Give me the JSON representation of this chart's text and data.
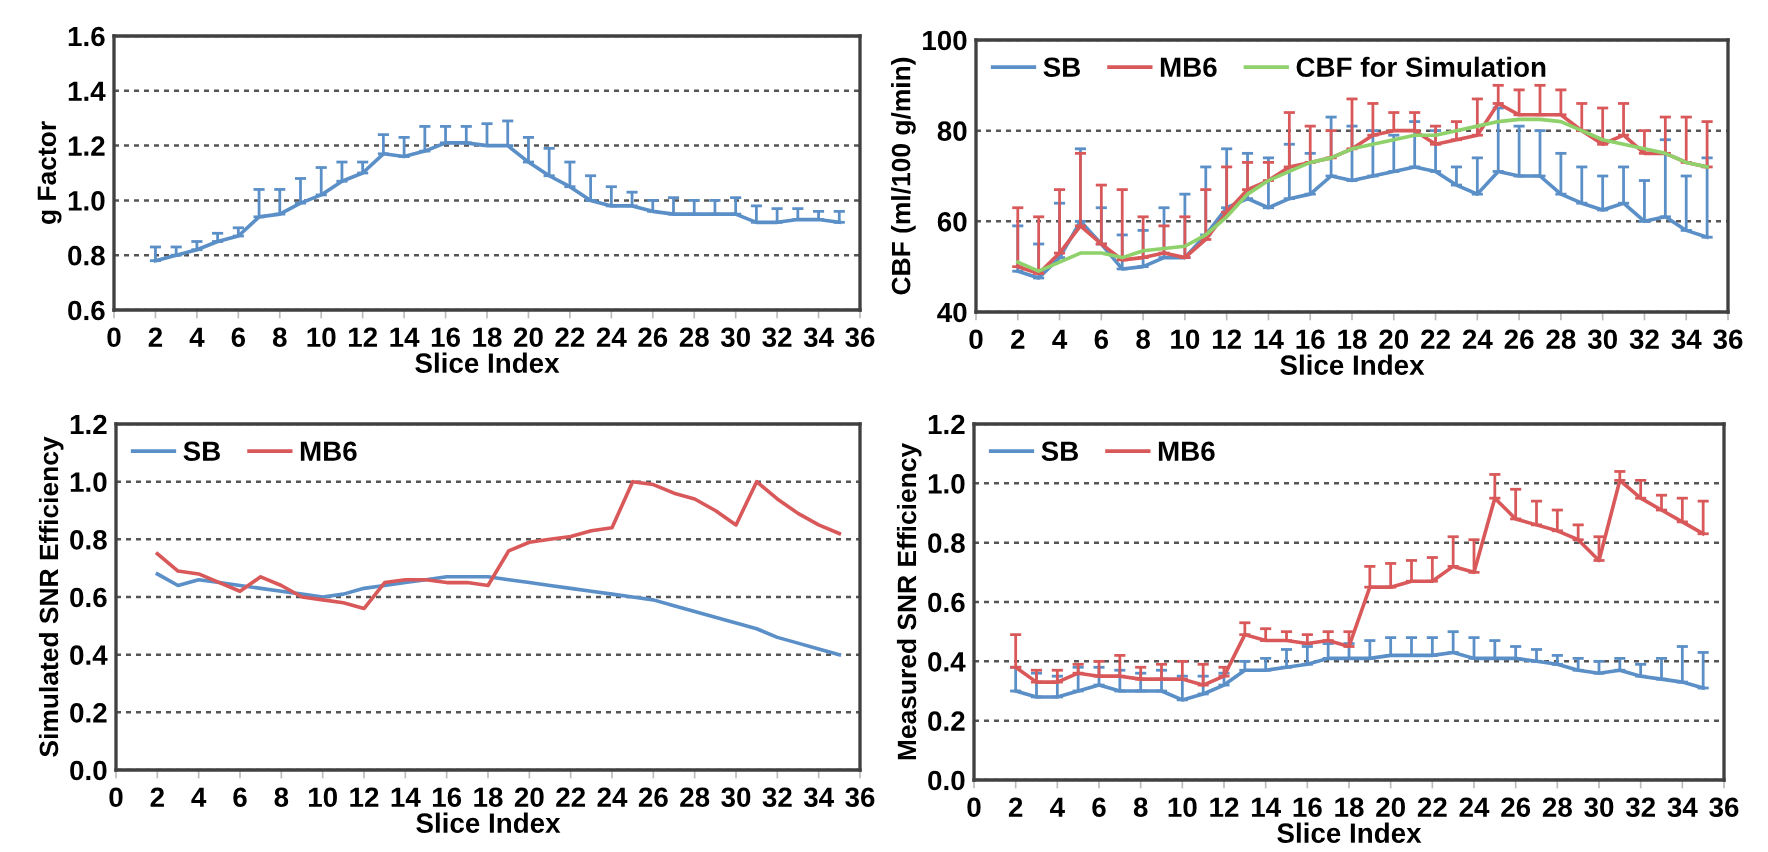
{
  "chart_data": [
    {
      "type": "line",
      "xlabel": "Slice Index",
      "ylabel": "g Factor",
      "x": [
        2,
        3,
        4,
        5,
        6,
        7,
        8,
        9,
        10,
        11,
        12,
        13,
        14,
        15,
        16,
        17,
        18,
        19,
        20,
        21,
        22,
        23,
        24,
        25,
        26,
        27,
        28,
        29,
        30,
        31,
        32,
        33,
        34,
        35
      ],
      "xlim": [
        0,
        36
      ],
      "xticks": [
        0,
        2,
        4,
        6,
        8,
        10,
        12,
        14,
        16,
        18,
        20,
        22,
        24,
        26,
        28,
        30,
        32,
        34,
        36
      ],
      "ylim": [
        0.6,
        1.6
      ],
      "yticks": [
        {
          "value": 0.6,
          "label": "0.6"
        },
        {
          "value": 0.8,
          "label": "0.8"
        },
        {
          "value": 1.0,
          "label": "1.0"
        },
        {
          "value": 1.2,
          "label": "1.2"
        },
        {
          "value": 1.4,
          "label": "1.4"
        },
        {
          "value": 1.6,
          "label": "1.6"
        }
      ],
      "grid": "y",
      "legend": false,
      "series": [
        {
          "color": "#5b8fc7",
          "values": [
            0.78,
            0.8,
            0.82,
            0.85,
            0.87,
            0.94,
            0.95,
            0.99,
            1.02,
            1.07,
            1.1,
            1.17,
            1.16,
            1.18,
            1.21,
            1.21,
            1.2,
            1.2,
            1.14,
            1.09,
            1.05,
            1.0,
            0.98,
            0.98,
            0.96,
            0.95,
            0.95,
            0.95,
            0.95,
            0.92,
            0.92,
            0.93,
            0.93,
            0.92
          ],
          "errors": [
            [
              0.78,
              0.83
            ],
            [
              0.8,
              0.83
            ],
            [
              0.82,
              0.85
            ],
            [
              0.85,
              0.88
            ],
            [
              0.87,
              0.9
            ],
            [
              0.94,
              1.04
            ],
            [
              0.95,
              1.04
            ],
            [
              0.99,
              1.08
            ],
            [
              1.02,
              1.12
            ],
            [
              1.07,
              1.14
            ],
            [
              1.1,
              1.14
            ],
            [
              1.17,
              1.24
            ],
            [
              1.16,
              1.23
            ],
            [
              1.18,
              1.27
            ],
            [
              1.21,
              1.27
            ],
            [
              1.21,
              1.27
            ],
            [
              1.2,
              1.28
            ],
            [
              1.2,
              1.29
            ],
            [
              1.14,
              1.23
            ],
            [
              1.09,
              1.19
            ],
            [
              1.05,
              1.14
            ],
            [
              1.0,
              1.09
            ],
            [
              0.98,
              1.05
            ],
            [
              0.98,
              1.03
            ],
            [
              0.96,
              1.0
            ],
            [
              0.95,
              1.01
            ],
            [
              0.95,
              1.0
            ],
            [
              0.95,
              1.0
            ],
            [
              0.95,
              1.01
            ],
            [
              0.92,
              0.98
            ],
            [
              0.92,
              0.97
            ],
            [
              0.93,
              0.97
            ],
            [
              0.93,
              0.96
            ],
            [
              0.92,
              0.96
            ]
          ]
        }
      ]
    },
    {
      "type": "line",
      "xlabel": "Slice Index",
      "ylabel": "CBF (ml/100 g/min)",
      "x": [
        2,
        3,
        4,
        5,
        6,
        7,
        8,
        9,
        10,
        11,
        12,
        13,
        14,
        15,
        16,
        17,
        18,
        19,
        20,
        21,
        22,
        23,
        24,
        25,
        26,
        27,
        28,
        29,
        30,
        31,
        32,
        33,
        34,
        35
      ],
      "xlim": [
        0,
        36
      ],
      "xticks": [
        0,
        2,
        4,
        6,
        8,
        10,
        12,
        14,
        16,
        18,
        20,
        22,
        24,
        26,
        28,
        30,
        32,
        34,
        36
      ],
      "ylim": [
        40,
        100
      ],
      "yticks": [
        40,
        60,
        80,
        100
      ],
      "grid": "y",
      "legend": "top left",
      "series": [
        {
          "name": "SB",
          "color": "#5b8fc7",
          "values": [
            49,
            47.5,
            52,
            60,
            55,
            49.5,
            50,
            52,
            52,
            57,
            63,
            65,
            63,
            65,
            66,
            70,
            69,
            70,
            71,
            72,
            71,
            68,
            66,
            71,
            70,
            70,
            66,
            64,
            62.5,
            64,
            60,
            61,
            58,
            56.5
          ],
          "errors": [
            [
              49,
              59
            ],
            [
              47.5,
              55
            ],
            [
              52,
              64
            ],
            [
              60,
              76
            ],
            [
              55,
              63
            ],
            [
              49.5,
              57
            ],
            [
              50,
              58
            ],
            [
              52,
              63
            ],
            [
              52,
              66
            ],
            [
              57,
              72
            ],
            [
              63,
              76
            ],
            [
              65,
              75
            ],
            [
              63,
              74
            ],
            [
              65,
              77
            ],
            [
              66,
              75
            ],
            [
              70,
              83
            ],
            [
              69,
              81
            ],
            [
              70,
              80
            ],
            [
              71,
              79
            ],
            [
              72,
              82
            ],
            [
              71,
              80
            ],
            [
              68,
              72
            ],
            [
              66,
              74
            ],
            [
              71,
              85
            ],
            [
              70,
              81
            ],
            [
              70,
              80
            ],
            [
              66,
              75
            ],
            [
              64,
              72
            ],
            [
              62.5,
              70
            ],
            [
              64,
              72
            ],
            [
              60,
              69
            ],
            [
              61,
              78
            ],
            [
              58,
              70
            ],
            [
              56.5,
              74
            ]
          ]
        },
        {
          "name": "MB6",
          "color": "#d9595a",
          "values": [
            50,
            48.5,
            53,
            59,
            55,
            51.5,
            52,
            53,
            52,
            56,
            62,
            67,
            69,
            72,
            73,
            74,
            76,
            79,
            80,
            80,
            77,
            78,
            79,
            86,
            83.5,
            83.5,
            83.5,
            80,
            77,
            79,
            75,
            75,
            73,
            72
          ],
          "errors": [
            [
              50,
              63
            ],
            [
              48.5,
              61
            ],
            [
              53,
              67
            ],
            [
              59,
              75
            ],
            [
              55,
              68
            ],
            [
              51.5,
              67
            ],
            [
              52,
              61
            ],
            [
              53,
              59
            ],
            [
              52,
              61
            ],
            [
              56,
              67
            ],
            [
              62,
              72
            ],
            [
              67,
              73
            ],
            [
              69,
              73
            ],
            [
              72,
              84
            ],
            [
              73,
              81
            ],
            [
              74,
              80
            ],
            [
              76,
              87
            ],
            [
              79,
              86
            ],
            [
              80,
              84
            ],
            [
              80,
              84
            ],
            [
              77,
              81
            ],
            [
              78,
              82
            ],
            [
              79,
              87
            ],
            [
              86,
              90
            ],
            [
              83.5,
              89
            ],
            [
              83.5,
              90
            ],
            [
              83.5,
              89
            ],
            [
              80,
              86
            ],
            [
              77,
              85
            ],
            [
              79,
              86
            ],
            [
              75,
              80
            ],
            [
              75,
              83
            ],
            [
              73,
              83
            ],
            [
              72,
              82
            ]
          ]
        },
        {
          "name": "CBF for Simulation",
          "color": "#8fd16a",
          "values": [
            51,
            49,
            51,
            53,
            53,
            52,
            53.5,
            54,
            54.5,
            57,
            61,
            66,
            69,
            71,
            73,
            74,
            76,
            77,
            78,
            79,
            79,
            80,
            81,
            82,
            82.5,
            82.5,
            82,
            80,
            78,
            77,
            76,
            75,
            73,
            72
          ]
        }
      ]
    },
    {
      "type": "line",
      "xlabel": "Slice Index",
      "ylabel": "Simulated SNR Efficiency",
      "x": [
        2,
        3,
        4,
        5,
        6,
        7,
        8,
        9,
        10,
        11,
        12,
        13,
        14,
        15,
        16,
        17,
        18,
        19,
        20,
        21,
        22,
        23,
        24,
        25,
        26,
        27,
        28,
        29,
        30,
        31,
        32,
        33,
        34,
        35
      ],
      "xlim": [
        0,
        36
      ],
      "xticks": [
        0,
        2,
        4,
        6,
        8,
        10,
        12,
        14,
        16,
        18,
        20,
        22,
        24,
        26,
        28,
        30,
        32,
        34,
        36
      ],
      "ylim": [
        0,
        1.2
      ],
      "yticks": [
        {
          "value": 0,
          "label": "0.0"
        },
        {
          "value": 0.2,
          "label": "0.2"
        },
        {
          "value": 0.4,
          "label": "0.4"
        },
        {
          "value": 0.6,
          "label": "0.6"
        },
        {
          "value": 0.8,
          "label": "0.8"
        },
        {
          "value": 1.0,
          "label": "1.0"
        },
        {
          "value": 1.2,
          "label": "1.2"
        }
      ],
      "grid": "y",
      "legend": "top left",
      "series": [
        {
          "name": "SB",
          "color": "#5b8fc7",
          "values": [
            0.68,
            0.64,
            0.66,
            0.65,
            0.64,
            0.63,
            0.62,
            0.61,
            0.6,
            0.61,
            0.63,
            0.64,
            0.65,
            0.66,
            0.67,
            0.67,
            0.67,
            0.66,
            0.65,
            0.64,
            0.63,
            0.62,
            0.61,
            0.6,
            0.59,
            0.57,
            0.55,
            0.53,
            0.51,
            0.49,
            0.46,
            0.44,
            0.42,
            0.4
          ]
        },
        {
          "name": "MB6",
          "color": "#d9595a",
          "values": [
            0.75,
            0.69,
            0.68,
            0.65,
            0.62,
            0.67,
            0.64,
            0.6,
            0.59,
            0.58,
            0.56,
            0.65,
            0.66,
            0.66,
            0.65,
            0.65,
            0.64,
            0.76,
            0.79,
            0.8,
            0.81,
            0.83,
            0.84,
            1.0,
            0.99,
            0.96,
            0.94,
            0.9,
            0.85,
            1.0,
            0.94,
            0.89,
            0.85,
            0.82
          ]
        }
      ]
    },
    {
      "type": "line",
      "xlabel": "Slice Index",
      "ylabel": "Measured SNR Efficiency",
      "x": [
        2,
        3,
        4,
        5,
        6,
        7,
        8,
        9,
        10,
        11,
        12,
        13,
        14,
        15,
        16,
        17,
        18,
        19,
        20,
        21,
        22,
        23,
        24,
        25,
        26,
        27,
        28,
        29,
        30,
        31,
        32,
        33,
        34,
        35
      ],
      "xlim": [
        0,
        36
      ],
      "xticks": [
        0,
        2,
        4,
        6,
        8,
        10,
        12,
        14,
        16,
        18,
        20,
        22,
        24,
        26,
        28,
        30,
        32,
        34,
        36
      ],
      "ylim": [
        0,
        1.2
      ],
      "yticks": [
        {
          "value": 0,
          "label": "0.0"
        },
        {
          "value": 0.2,
          "label": "0.2"
        },
        {
          "value": 0.4,
          "label": "0.4"
        },
        {
          "value": 0.6,
          "label": "0.6"
        },
        {
          "value": 0.8,
          "label": "0.8"
        },
        {
          "value": 1.0,
          "label": "1.0"
        },
        {
          "value": 1.2,
          "label": "1.2"
        }
      ],
      "grid": "y",
      "legend": "top left",
      "series": [
        {
          "name": "SB",
          "color": "#5b8fc7",
          "values": [
            0.3,
            0.28,
            0.28,
            0.3,
            0.32,
            0.3,
            0.3,
            0.3,
            0.27,
            0.29,
            0.32,
            0.37,
            0.37,
            0.38,
            0.39,
            0.41,
            0.41,
            0.41,
            0.42,
            0.42,
            0.42,
            0.43,
            0.41,
            0.41,
            0.41,
            0.4,
            0.39,
            0.37,
            0.36,
            0.37,
            0.35,
            0.34,
            0.33,
            0.31
          ],
          "errors": [
            [
              0.3,
              0.38
            ],
            [
              0.28,
              0.36
            ],
            [
              0.28,
              0.35
            ],
            [
              0.3,
              0.38
            ],
            [
              0.32,
              0.38
            ],
            [
              0.3,
              0.37
            ],
            [
              0.3,
              0.36
            ],
            [
              0.3,
              0.37
            ],
            [
              0.27,
              0.35
            ],
            [
              0.29,
              0.35
            ],
            [
              0.32,
              0.36
            ],
            [
              0.37,
              0.4
            ],
            [
              0.37,
              0.41
            ],
            [
              0.38,
              0.44
            ],
            [
              0.39,
              0.45
            ],
            [
              0.41,
              0.46
            ],
            [
              0.41,
              0.46
            ],
            [
              0.41,
              0.47
            ],
            [
              0.42,
              0.48
            ],
            [
              0.42,
              0.48
            ],
            [
              0.42,
              0.48
            ],
            [
              0.43,
              0.5
            ],
            [
              0.41,
              0.48
            ],
            [
              0.41,
              0.47
            ],
            [
              0.41,
              0.45
            ],
            [
              0.4,
              0.44
            ],
            [
              0.39,
              0.42
            ],
            [
              0.37,
              0.41
            ],
            [
              0.36,
              0.4
            ],
            [
              0.37,
              0.41
            ],
            [
              0.35,
              0.39
            ],
            [
              0.34,
              0.41
            ],
            [
              0.33,
              0.45
            ],
            [
              0.31,
              0.43
            ]
          ]
        },
        {
          "name": "MB6",
          "color": "#d9595a",
          "values": [
            0.38,
            0.33,
            0.33,
            0.36,
            0.35,
            0.35,
            0.34,
            0.34,
            0.34,
            0.32,
            0.35,
            0.49,
            0.47,
            0.47,
            0.46,
            0.47,
            0.45,
            0.65,
            0.65,
            0.67,
            0.67,
            0.72,
            0.7,
            0.95,
            0.88,
            0.86,
            0.84,
            0.81,
            0.74,
            1.01,
            0.95,
            0.91,
            0.87,
            0.83
          ],
          "errors": [
            [
              0.38,
              0.49
            ],
            [
              0.33,
              0.37
            ],
            [
              0.33,
              0.37
            ],
            [
              0.36,
              0.39
            ],
            [
              0.35,
              0.4
            ],
            [
              0.35,
              0.42
            ],
            [
              0.34,
              0.38
            ],
            [
              0.34,
              0.39
            ],
            [
              0.34,
              0.4
            ],
            [
              0.32,
              0.39
            ],
            [
              0.35,
              0.38
            ],
            [
              0.49,
              0.53
            ],
            [
              0.47,
              0.51
            ],
            [
              0.47,
              0.5
            ],
            [
              0.46,
              0.49
            ],
            [
              0.47,
              0.5
            ],
            [
              0.45,
              0.5
            ],
            [
              0.65,
              0.72
            ],
            [
              0.65,
              0.73
            ],
            [
              0.67,
              0.74
            ],
            [
              0.67,
              0.75
            ],
            [
              0.72,
              0.82
            ],
            [
              0.7,
              0.81
            ],
            [
              0.95,
              1.03
            ],
            [
              0.88,
              0.98
            ],
            [
              0.86,
              0.94
            ],
            [
              0.84,
              0.91
            ],
            [
              0.81,
              0.86
            ],
            [
              0.74,
              0.82
            ],
            [
              1.01,
              1.04
            ],
            [
              0.95,
              1.01
            ],
            [
              0.91,
              0.96
            ],
            [
              0.87,
              0.95
            ],
            [
              0.83,
              0.94
            ]
          ]
        }
      ]
    }
  ]
}
